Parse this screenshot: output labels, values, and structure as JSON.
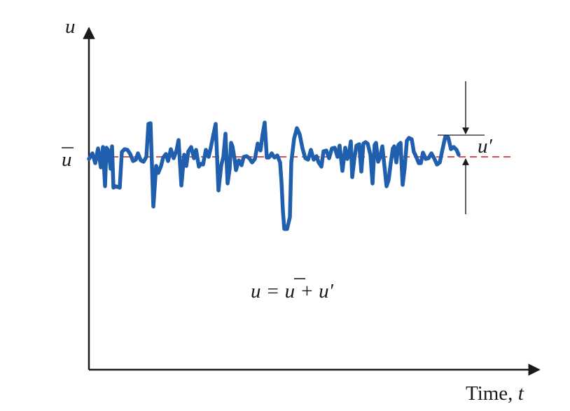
{
  "labels": {
    "y_axis": "u",
    "mean": "u",
    "fluctuation": "u′",
    "x_axis_word": "Time, ",
    "x_axis_var": "t",
    "equation_lhs": "u = ",
    "equation_mean": "u",
    "equation_rest": " + u′"
  },
  "colors": {
    "signal": "#1f5fae",
    "mean_line": "#d9534f",
    "axes": "#1a1a1a",
    "text": "#1a1a1a"
  }
}
